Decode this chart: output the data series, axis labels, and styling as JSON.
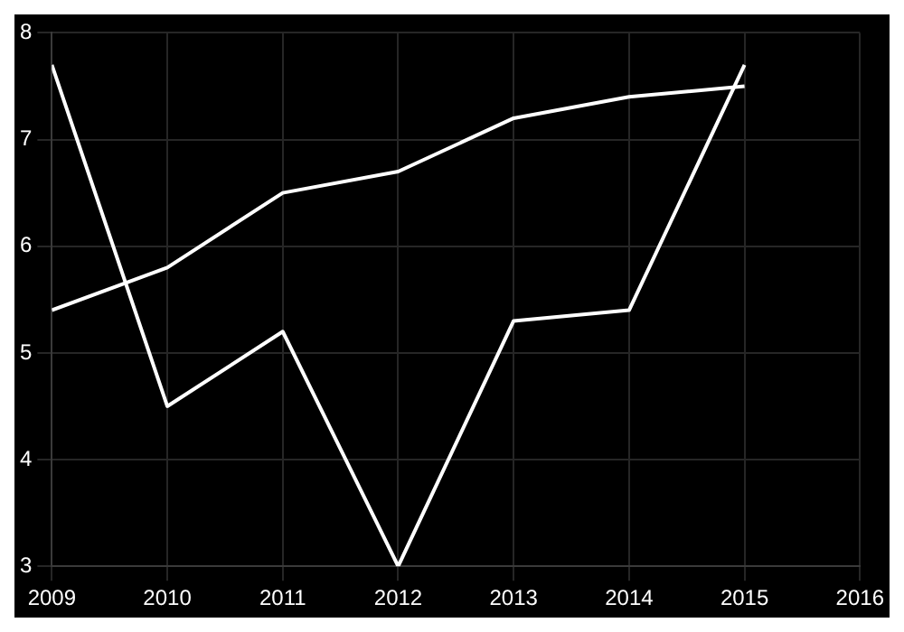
{
  "chart_data": {
    "type": "line",
    "x": [
      2009,
      2010,
      2011,
      2012,
      2013,
      2014,
      2015
    ],
    "series": [
      {
        "color": "#ffffff",
        "values": [
          7.7,
          4.5,
          5.2,
          3.0,
          5.3,
          5.4,
          7.7
        ]
      },
      {
        "color": "#ffffff",
        "values": [
          5.4,
          5.8,
          6.5,
          6.7,
          7.2,
          7.4,
          7.5
        ]
      }
    ],
    "xlim": [
      2009,
      2016
    ],
    "xticks": [
      2009,
      2010,
      2011,
      2012,
      2013,
      2014,
      2015,
      2016
    ],
    "ylim": [
      3,
      8
    ],
    "yticks": [
      3,
      4,
      5,
      6,
      7,
      8
    ],
    "grid": true,
    "legend": false,
    "marker": "none",
    "line_style": "solid"
  }
}
